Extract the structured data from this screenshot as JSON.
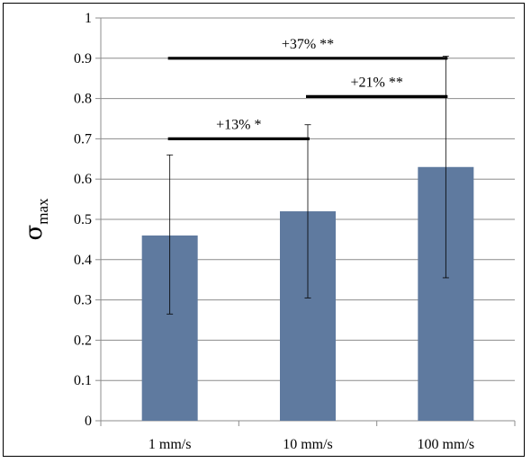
{
  "chart_data": {
    "type": "bar",
    "categories": [
      "1 mm/s",
      "10 mm/s",
      "100 mm/s"
    ],
    "values": [
      0.46,
      0.52,
      0.63
    ],
    "error_low": [
      0.265,
      0.305,
      0.355
    ],
    "error_high": [
      0.66,
      0.735,
      0.905
    ],
    "ylabel": "σ",
    "ylabel_subscript": "max",
    "xlabel": "",
    "ylim": [
      0,
      1
    ],
    "yticks": [
      "0",
      "0.1",
      "0.2",
      "0.3",
      "0.4",
      "0.5",
      "0.6",
      "0.7",
      "0.8",
      "0.9",
      "1"
    ],
    "grid": true,
    "bar_color": "#5f7a9f",
    "significance": [
      {
        "from": 0,
        "to": 1,
        "y": 0.7,
        "label": "+13% *"
      },
      {
        "from": 1,
        "to": 2,
        "y": 0.805,
        "label": "+21% **"
      },
      {
        "from": 0,
        "to": 2,
        "y": 0.9,
        "label": "+37% **"
      }
    ]
  }
}
